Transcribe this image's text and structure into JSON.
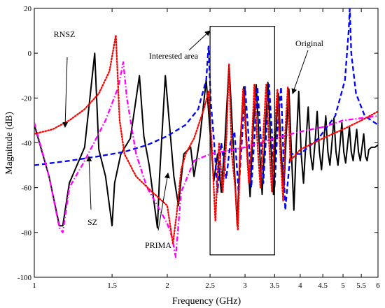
{
  "chart_data": {
    "type": "line",
    "xlabel": "Frequency (GHz)",
    "ylabel": "Magnitude (dB)",
    "x_scale": "log",
    "xlim": [
      1,
      6
    ],
    "ylim": [
      -100,
      20
    ],
    "x_ticks": [
      1,
      1.5,
      2,
      2.5,
      3,
      3.5,
      4,
      4.5,
      5,
      5.5,
      6
    ],
    "x_tick_labels": [
      "1",
      "1.5",
      "2",
      "2.5",
      "3",
      "3.5",
      "4",
      "4.5",
      "5",
      "5.5",
      "6"
    ],
    "y_ticks": [
      -100,
      -80,
      -60,
      -40,
      -20,
      0,
      20
    ],
    "y_tick_labels": [
      "-100",
      "-80",
      "-60",
      "-40",
      "-20",
      "0",
      "20"
    ],
    "grid": false,
    "series": [
      {
        "name": "Original",
        "color": "#000000",
        "style": "solid",
        "x": [
          1,
          1.08,
          1.14,
          1.16,
          1.2,
          1.3,
          1.37,
          1.4,
          1.45,
          1.5,
          1.52,
          1.57,
          1.65,
          1.73,
          1.77,
          1.82,
          1.9,
          1.92,
          1.98,
          2.07,
          2.12,
          2.18,
          2.26,
          2.3,
          2.37,
          2.45,
          2.5,
          2.55,
          2.6,
          2.65,
          2.7,
          2.76,
          2.82,
          2.88,
          2.93,
          2.98,
          3.03,
          3.08,
          3.12,
          3.18,
          3.23,
          3.28,
          3.33,
          3.38,
          3.43,
          3.48,
          3.52,
          3.57,
          3.62,
          3.67,
          3.72,
          3.77,
          3.82,
          3.87,
          3.92,
          3.97,
          4.02,
          4.07,
          4.12,
          4.17,
          4.22,
          4.27,
          4.32,
          4.37,
          4.42,
          4.47,
          4.52,
          4.57,
          4.62,
          4.67,
          4.72,
          4.77,
          4.82,
          4.87,
          4.92,
          4.97,
          5.02,
          5.07,
          5.12,
          5.17,
          5.22,
          5.27,
          5.32,
          5.37,
          5.42,
          5.47,
          5.52,
          5.57,
          5.62,
          5.67,
          5.72,
          5.8,
          5.9,
          6
        ],
        "y": [
          -32,
          -55,
          -77,
          -77,
          -58,
          -42,
          0,
          -43,
          -55,
          -77,
          -58,
          -45,
          -38,
          -10,
          -37,
          -50,
          -78,
          -56,
          -10,
          -55,
          -68,
          -45,
          -42,
          -55,
          -38,
          -12,
          -35,
          -57,
          -45,
          -62,
          -40,
          -5,
          -40,
          -77,
          -38,
          -15,
          -42,
          -64,
          -38,
          -14,
          -40,
          -63,
          -36,
          -13,
          -40,
          -63,
          -36,
          -18,
          -42,
          -62,
          -36,
          -16,
          -44,
          -70,
          -40,
          -17,
          -45,
          -58,
          -40,
          -24,
          -45,
          -52,
          -40,
          -26,
          -44,
          -52,
          -40,
          -28,
          -44,
          -50,
          -40,
          -29,
          -44,
          -50,
          -41,
          -31,
          -44,
          -49,
          -41,
          -33,
          -44,
          -48,
          -41,
          -34,
          -44,
          -48,
          -42,
          -36,
          -46,
          -48,
          -43,
          -42,
          -42,
          -41
        ]
      },
      {
        "name": "RNSZ",
        "color": "#ff0000",
        "style": "dotted",
        "x": [
          1,
          1.1,
          1.2,
          1.3,
          1.4,
          1.48,
          1.53,
          1.56,
          1.6,
          1.7,
          1.85,
          2,
          2.06,
          2.1,
          2.15,
          2.2,
          2.3,
          2.42,
          2.48,
          2.52,
          2.57,
          2.62,
          2.67,
          2.72,
          2.76,
          2.8,
          2.85,
          2.89,
          2.93,
          2.97,
          3.02,
          3.06,
          3.11,
          3.15,
          3.2,
          3.25,
          3.3,
          3.35,
          3.4,
          3.45,
          3.5,
          3.55,
          3.6,
          3.66,
          3.7,
          3.75,
          3.8,
          4,
          4.5,
          5,
          5.5,
          6
        ],
        "y": [
          -36,
          -34,
          -30,
          -25,
          -18,
          -8,
          8,
          -30,
          -45,
          -55,
          -62,
          -68,
          -85,
          -72,
          -52,
          -45,
          -38,
          -25,
          -17,
          -40,
          -75,
          -40,
          -62,
          -40,
          -5,
          -45,
          -60,
          -79,
          -40,
          -16,
          -40,
          -58,
          -38,
          -14,
          -40,
          -60,
          -36,
          -14,
          -40,
          -62,
          -36,
          -16,
          -42,
          -66,
          -35,
          -15,
          -48,
          -43,
          -38,
          -34,
          -30,
          -26
        ]
      },
      {
        "name": "SZ",
        "color": "#ff00ff",
        "style": "dash-dot",
        "x": [
          1,
          1.08,
          1.14,
          1.16,
          1.2,
          1.3,
          1.45,
          1.55,
          1.59,
          1.62,
          1.7,
          1.8,
          1.9,
          2,
          2.05,
          2.09,
          2.15,
          2.3,
          2.5,
          3,
          3.5,
          4,
          4.5,
          5,
          5.5,
          6
        ],
        "y": [
          -31,
          -55,
          -78,
          -80,
          -60,
          -48,
          -30,
          -15,
          -4,
          -20,
          -45,
          -60,
          -68,
          -76,
          -82,
          -91,
          -62,
          -48,
          -45,
          -42,
          -38,
          -35,
          -33,
          -30,
          -29,
          -28
        ]
      },
      {
        "name": "PRIMA",
        "color": "#0000ff",
        "style": "dashed",
        "x": [
          1,
          1.2,
          1.4,
          1.6,
          1.8,
          2,
          2.2,
          2.35,
          2.45,
          2.48,
          2.51,
          2.55,
          2.6,
          2.65,
          2.72,
          2.78,
          2.84,
          2.9,
          2.95,
          3.0,
          3.05,
          3.1,
          3.15,
          3.2,
          3.25,
          3.3,
          3.35,
          3.4,
          3.45,
          3.5,
          3.55,
          3.62,
          3.7,
          3.8,
          4,
          4.4,
          4.8,
          5.05,
          5.15,
          5.18,
          5.22,
          5.35,
          5.6,
          6
        ],
        "y": [
          -50,
          -48,
          -46,
          -44,
          -41,
          -37,
          -32,
          -25,
          -12,
          3,
          -22,
          -38,
          -62,
          -40,
          -56,
          -40,
          -35,
          -62,
          -40,
          -15,
          -35,
          -60,
          -38,
          -15,
          -35,
          -58,
          -36,
          -14,
          -35,
          -60,
          -35,
          -15,
          -70,
          -45,
          -45,
          -38,
          -28,
          -12,
          10,
          20,
          0,
          -18,
          -28,
          -32
        ]
      }
    ],
    "annotations": [
      {
        "text": "RNSZ",
        "target": "RNSZ"
      },
      {
        "text": "SZ",
        "target": "SZ"
      },
      {
        "text": "PRIMA",
        "target": "PRIMA"
      },
      {
        "text": "Original",
        "target": "Original"
      },
      {
        "text": "Interested area",
        "target": "box"
      }
    ],
    "highlight_box": {
      "x": [
        2.5,
        3.5
      ],
      "y": [
        -90,
        12
      ]
    }
  }
}
